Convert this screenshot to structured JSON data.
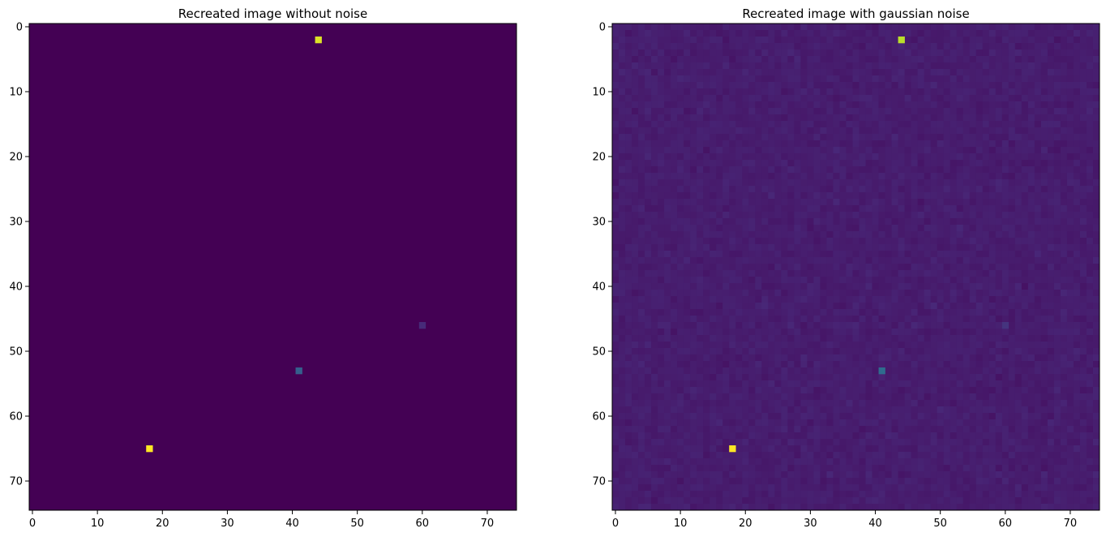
{
  "chart_data": [
    {
      "type": "heatmap",
      "title": "Recreated image without noise",
      "xlabel": "",
      "ylabel": "",
      "xlim": [
        -0.5,
        74.5
      ],
      "ylim": [
        74.5,
        -0.5
      ],
      "shape": [
        75,
        75
      ],
      "x_ticks": [
        0,
        10,
        20,
        30,
        40,
        50,
        60,
        70
      ],
      "y_ticks": [
        0,
        10,
        20,
        30,
        40,
        50,
        60,
        70
      ],
      "grid": false,
      "colormap": "viridis",
      "background_value": 0.0,
      "noise": false,
      "points": [
        {
          "x": 44,
          "y": 2,
          "value": 0.95
        },
        {
          "x": 18,
          "y": 65,
          "value": 1.0
        },
        {
          "x": 41,
          "y": 53,
          "value": 0.3
        },
        {
          "x": 60,
          "y": 46,
          "value": 0.12
        }
      ]
    },
    {
      "type": "heatmap",
      "title": "Recreated image with gaussian noise",
      "xlabel": "",
      "ylabel": "",
      "xlim": [
        -0.5,
        74.5
      ],
      "ylim": [
        74.5,
        -0.5
      ],
      "shape": [
        75,
        75
      ],
      "x_ticks": [
        0,
        10,
        20,
        30,
        40,
        50,
        60,
        70
      ],
      "y_ticks": [
        0,
        10,
        20,
        30,
        40,
        50,
        60,
        70
      ],
      "grid": false,
      "colormap": "viridis",
      "background_value": 0.08,
      "noise": true,
      "points": [
        {
          "x": 44,
          "y": 2,
          "value": 0.9
        },
        {
          "x": 18,
          "y": 65,
          "value": 1.0
        },
        {
          "x": 41,
          "y": 53,
          "value": 0.35
        },
        {
          "x": 60,
          "y": 46,
          "value": 0.15
        }
      ]
    }
  ]
}
